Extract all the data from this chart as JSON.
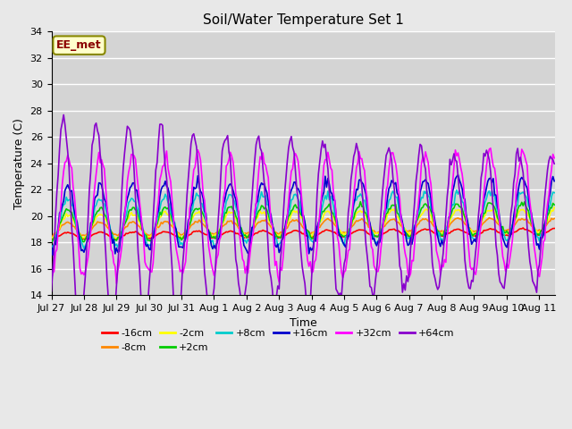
{
  "title": "Soil/Water Temperature Set 1",
  "xlabel": "Time",
  "ylabel": "Temperature (C)",
  "annotation": "EE_met",
  "ylim": [
    14,
    34
  ],
  "background_color": "#e8e8e8",
  "plot_bg_color": "#d4d4d4",
  "grid_color": "#ffffff",
  "colors": {
    "-16cm": "#ff0000",
    "-8cm": "#ff8800",
    "-2cm": "#ffff00",
    "+2cm": "#00cc00",
    "+8cm": "#00cccc",
    "+16cm": "#0000cc",
    "+32cm": "#ff00ff",
    "+64cm": "#8800cc"
  },
  "tick_labels": [
    "Jul 27",
    "Jul 28",
    "Jul 29",
    "Jul 30",
    "Jul 31",
    "Aug 1",
    "Aug 2",
    "Aug 3",
    "Aug 4",
    "Aug 5",
    "Aug 6",
    "Aug 7",
    "Aug 8",
    "Aug 9",
    "Aug 10",
    "Aug 11"
  ],
  "yticks": [
    14,
    16,
    18,
    20,
    22,
    24,
    26,
    28,
    30,
    32,
    34
  ]
}
